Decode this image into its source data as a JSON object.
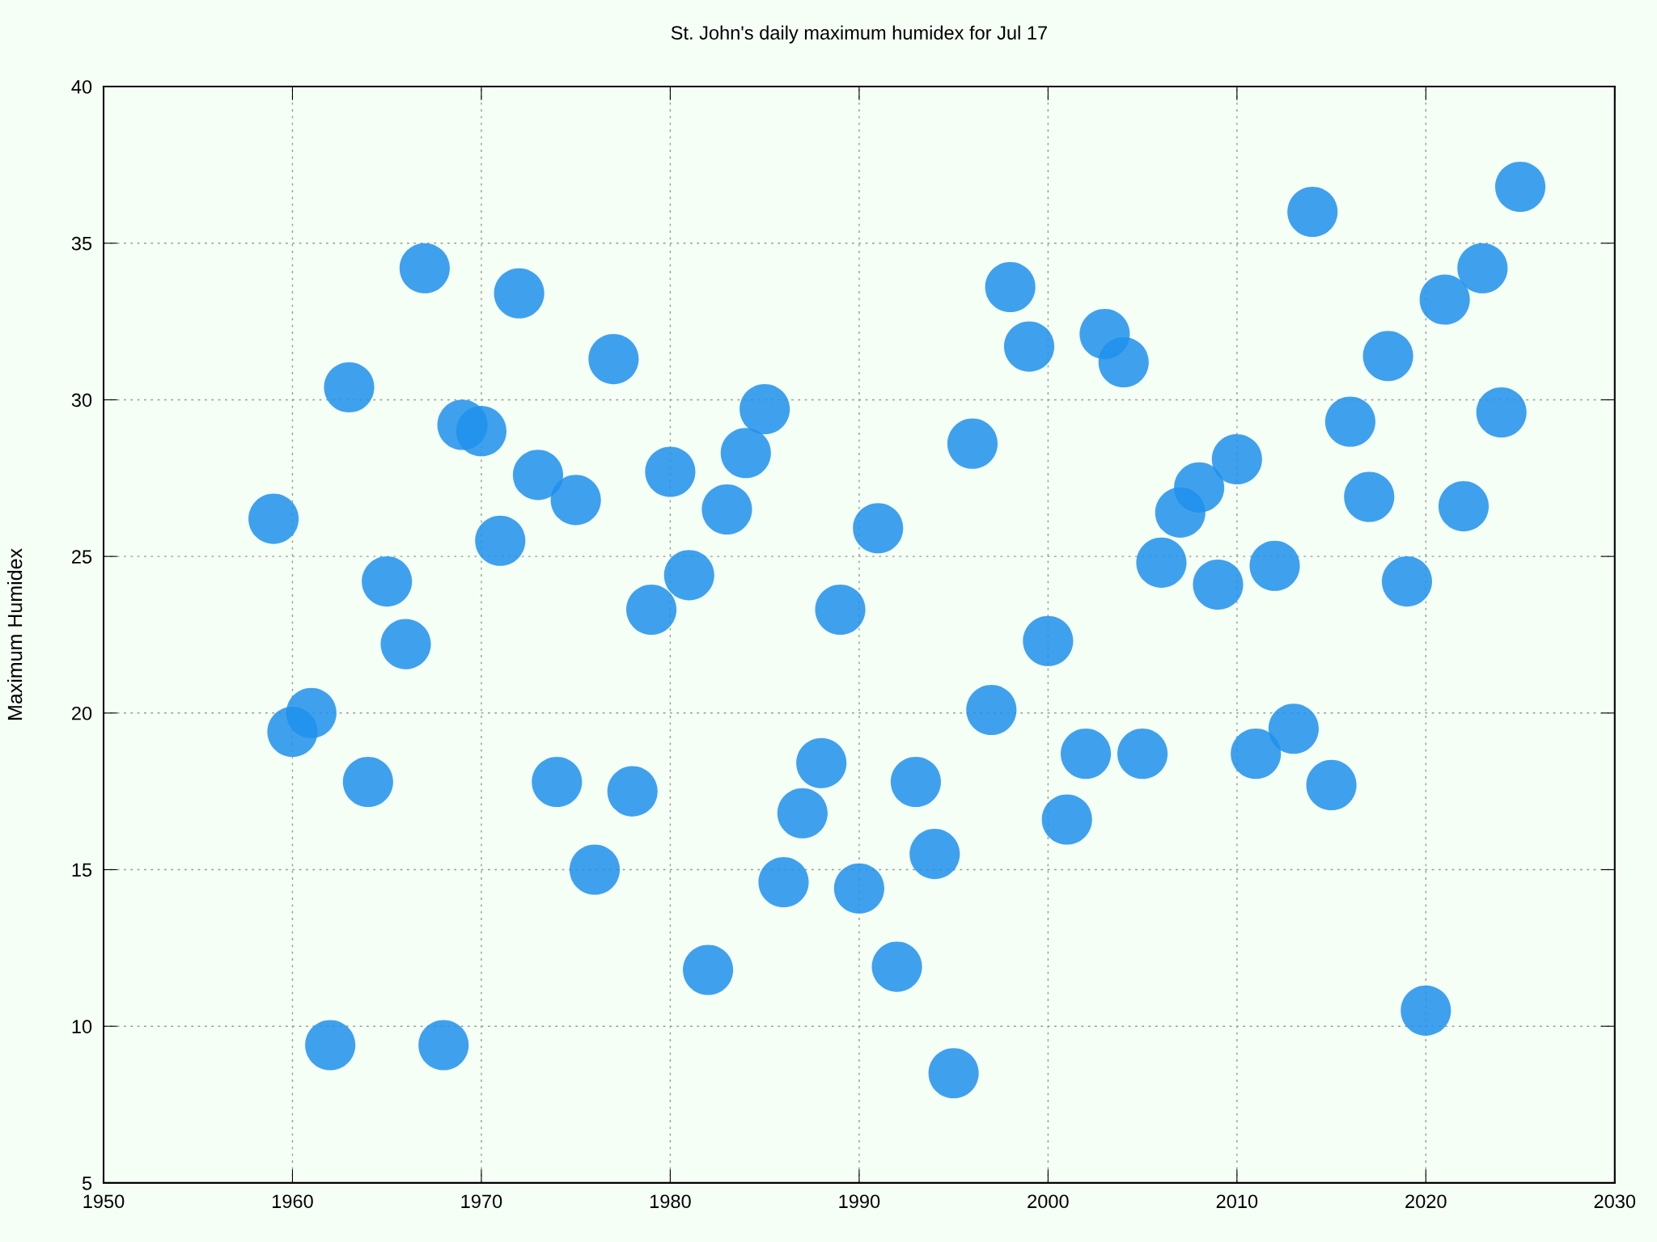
{
  "chart_data": {
    "type": "scatter",
    "title": "St. John's daily maximum humidex for Jul 17",
    "ylabel": "Maximum Humidex",
    "x": [
      1959,
      1960,
      1961,
      1962,
      1963,
      1964,
      1965,
      1966,
      1967,
      1968,
      1969,
      1970,
      1971,
      1972,
      1973,
      1974,
      1975,
      1976,
      1977,
      1978,
      1979,
      1980,
      1981,
      1982,
      1983,
      1984,
      1985,
      1986,
      1987,
      1988,
      1989,
      1990,
      1991,
      1992,
      1993,
      1994,
      1995,
      1996,
      1997,
      1998,
      1999,
      2000,
      2001,
      2002,
      2003,
      2004,
      2005,
      2006,
      2007,
      2008,
      2009,
      2010,
      2011,
      2012,
      2013,
      2014,
      2015,
      2016,
      2017,
      2018,
      2019,
      2020,
      2021,
      2022,
      2023,
      2024,
      2025
    ],
    "series": [
      {
        "color": "#1e90ec",
        "values": [
          26.2,
          19.4,
          20.0,
          9.4,
          30.4,
          17.8,
          24.2,
          22.2,
          34.2,
          9.4,
          29.2,
          29.0,
          25.5,
          33.4,
          27.6,
          17.8,
          26.8,
          15.0,
          31.3,
          17.5,
          23.3,
          27.7,
          24.4,
          11.8,
          26.5,
          28.3,
          29.7,
          14.6,
          16.8,
          18.4,
          23.3,
          14.4,
          25.9,
          11.9,
          17.8,
          15.5,
          8.5,
          28.6,
          20.1,
          33.6,
          31.7,
          22.3,
          16.6,
          18.7,
          32.1,
          31.2,
          18.7,
          24.8,
          26.4,
          27.2,
          24.1,
          28.1,
          18.7,
          24.7,
          19.5,
          36.0,
          17.7,
          29.3,
          26.9,
          31.4,
          24.2,
          10.5,
          33.2,
          26.6,
          34.2,
          29.6,
          36.8
        ]
      }
    ],
    "xlim": [
      1950,
      2030
    ],
    "xticks": [
      1950,
      1960,
      1970,
      1980,
      1990,
      2000,
      2010,
      2020,
      2030
    ],
    "ylim": [
      5,
      40
    ],
    "yticks": [
      5,
      10,
      15,
      20,
      25,
      30,
      35,
      40
    ],
    "grid": true,
    "marker": "circle"
  }
}
